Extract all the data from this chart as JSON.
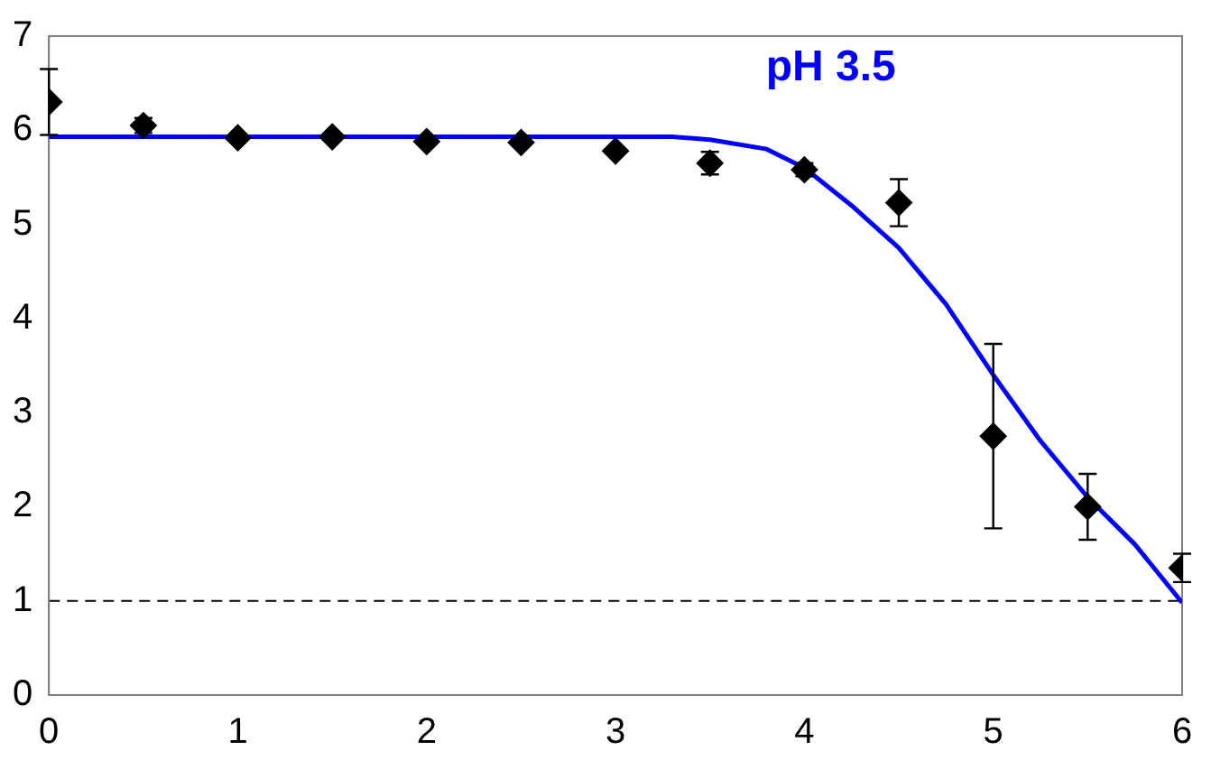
{
  "chart_data": {
    "type": "scatter",
    "xlim": [
      0,
      6
    ],
    "xticks": [
      0,
      1,
      2,
      3,
      4,
      5,
      6
    ],
    "ylim": [
      0,
      7
    ],
    "yticks": [
      0,
      1,
      2,
      3,
      4,
      5,
      6,
      7
    ],
    "grid": false,
    "legend": false,
    "marker": "diamond",
    "series": [
      {
        "color": "#000000",
        "x": [
          0,
          0.5,
          1,
          1.5,
          2,
          2.5,
          3,
          3.5,
          4,
          4.5,
          5,
          5.5,
          6
        ],
        "values": [
          6.3,
          6.05,
          5.92,
          5.93,
          5.88,
          5.87,
          5.78,
          5.65,
          5.58,
          5.23,
          2.75,
          2.0,
          1.35
        ],
        "errors": [
          0.35,
          0.08,
          null,
          null,
          null,
          null,
          null,
          0.12,
          0.07,
          0.25,
          0.98,
          0.35,
          0.15
        ]
      },
      {
        "type": "line",
        "color": "#0000ff",
        "marker": "none",
        "x": [
          0,
          1,
          2,
          3,
          3.3,
          3.5,
          3.8,
          4,
          4.25,
          4.5,
          4.75,
          5,
          5.25,
          5.5,
          5.75,
          6
        ],
        "values": [
          5.93,
          5.93,
          5.93,
          5.93,
          5.93,
          5.9,
          5.8,
          5.6,
          5.2,
          4.75,
          4.15,
          3.4,
          2.7,
          2.1,
          1.6,
          0.98
        ]
      }
    ],
    "ref_lines": [
      {
        "axis": "y",
        "value": 1,
        "line_style": "dashed",
        "color": "#000000"
      }
    ],
    "annotations": [
      "pH 3.5"
    ]
  }
}
